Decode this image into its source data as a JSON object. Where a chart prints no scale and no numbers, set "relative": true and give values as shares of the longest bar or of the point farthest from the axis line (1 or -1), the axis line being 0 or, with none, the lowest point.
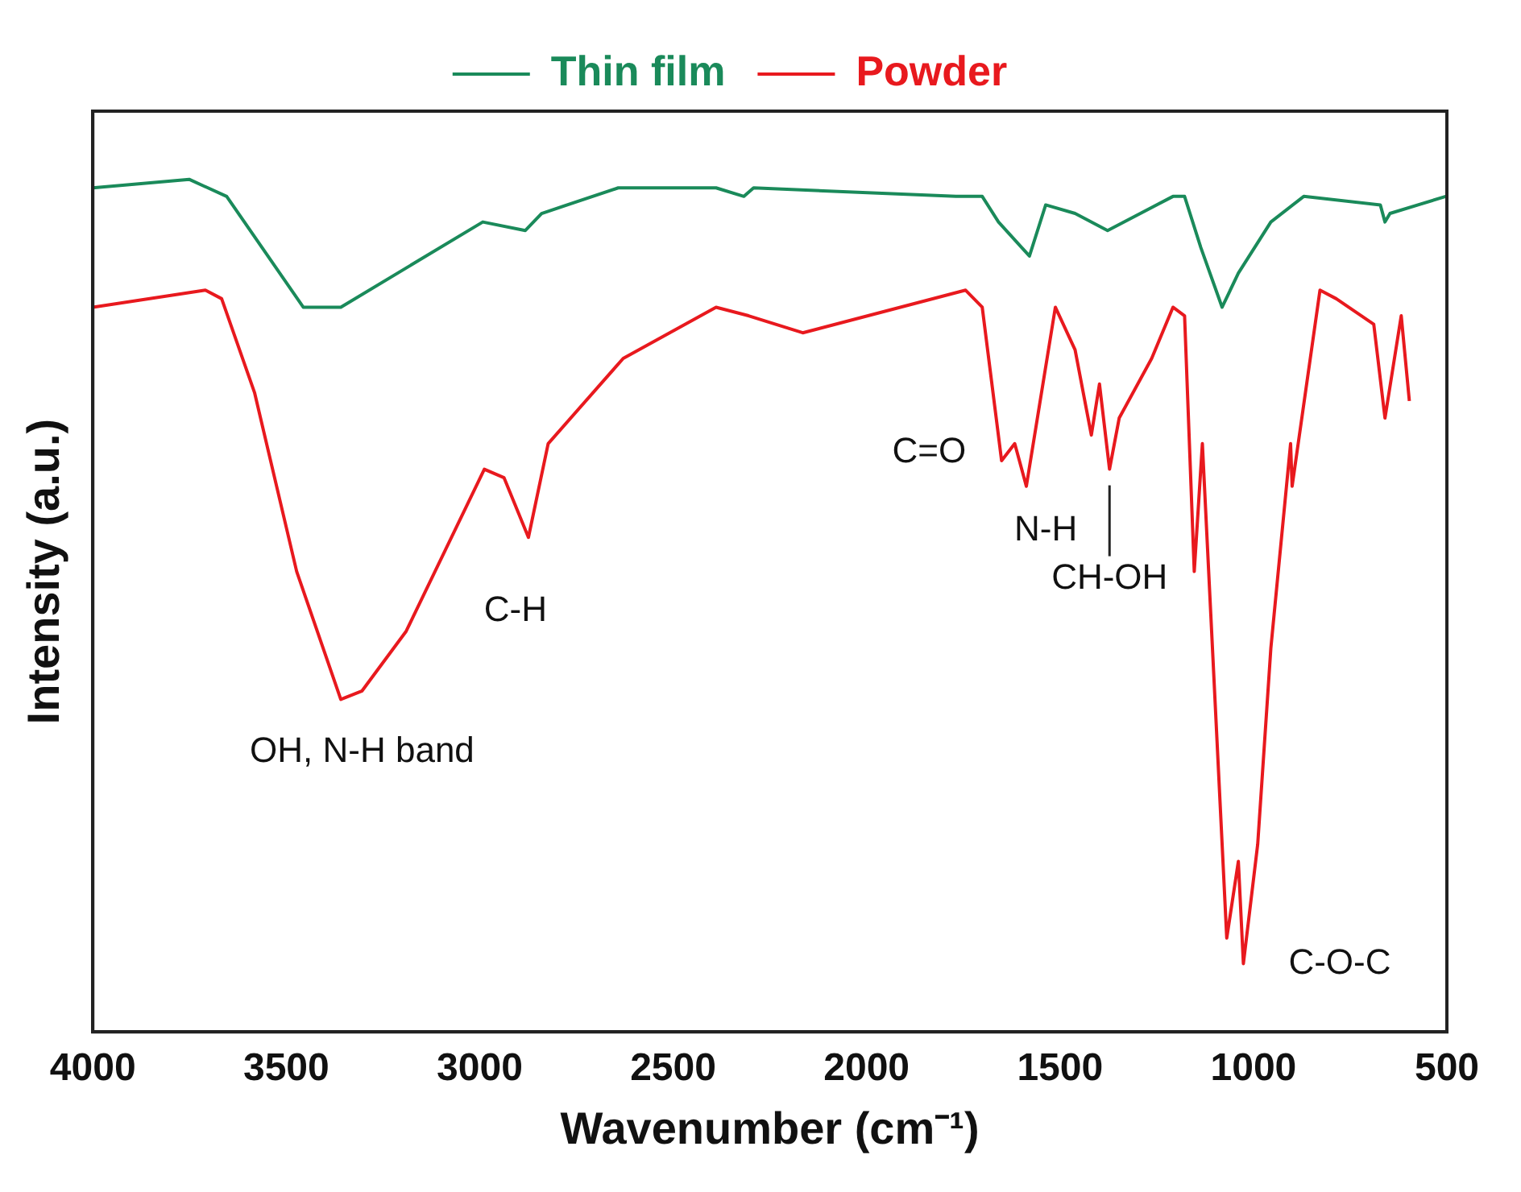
{
  "chart_data": {
    "type": "line",
    "relative": true,
    "xlabel": "Wavenumber (cm⁻¹)",
    "ylabel": "Intensity (a.u.)",
    "xlim": [
      4000,
      500
    ],
    "xticks": [
      4000,
      3500,
      3000,
      2500,
      2000,
      1500,
      1000,
      500
    ],
    "grid": false,
    "legend": "top",
    "marker": "none",
    "line_style": "solid",
    "series": [
      {
        "name": "Thin film",
        "color": "#1a8a5a",
        "x": [
          4000,
          3751,
          3654,
          3456,
          3359,
          2992,
          2882,
          2840,
          2642,
          2389,
          2317,
          2292,
          1769,
          1701,
          1659,
          1579,
          1537,
          1461,
          1377,
          1208,
          1178,
          1136,
          1081,
          1039,
          955,
          870,
          672,
          660,
          647,
          503
        ],
        "values": [
          0.99,
          1.0,
          0.98,
          0.85,
          0.85,
          0.95,
          0.94,
          0.96,
          0.99,
          0.99,
          0.98,
          0.99,
          0.98,
          0.98,
          0.95,
          0.91,
          0.97,
          0.96,
          0.94,
          0.98,
          0.98,
          0.92,
          0.85,
          0.89,
          0.95,
          0.98,
          0.97,
          0.95,
          0.96,
          0.98
        ]
      },
      {
        "name": "Powder",
        "color": "#e8191e",
        "x": [
          4000,
          3709,
          3667,
          3582,
          3473,
          3359,
          3304,
          3190,
          2988,
          2937,
          2874,
          2823,
          2629,
          2389,
          2305,
          2165,
          1744,
          1701,
          1651,
          1617,
          1587,
          1512,
          1461,
          1419,
          1398,
          1372,
          1347,
          1263,
          1208,
          1178,
          1153,
          1132,
          1069,
          1039,
          1026,
          989,
          955,
          904,
          900,
          828,
          786,
          689,
          660,
          618,
          597
        ],
        "values": [
          0.85,
          0.87,
          0.86,
          0.75,
          0.54,
          0.39,
          0.4,
          0.47,
          0.66,
          0.65,
          0.58,
          0.69,
          0.79,
          0.85,
          0.84,
          0.82,
          0.87,
          0.85,
          0.67,
          0.69,
          0.64,
          0.85,
          0.8,
          0.7,
          0.76,
          0.66,
          0.72,
          0.79,
          0.85,
          0.84,
          0.54,
          0.69,
          0.11,
          0.2,
          0.08,
          0.22,
          0.45,
          0.69,
          0.64,
          0.87,
          0.86,
          0.83,
          0.72,
          0.84,
          0.74
        ]
      }
    ],
    "annotations": [
      {
        "text": "OH, N-H band",
        "x": 3304,
        "y": 0.4
      },
      {
        "text": "C-H",
        "x": 2874,
        "y": 0.58
      },
      {
        "text": "C=O",
        "x": 1651,
        "y": 0.67
      },
      {
        "text": "N-H",
        "x": 1372,
        "y": 0.66
      },
      {
        "text": "CH-OH",
        "x": 1372,
        "y": 0.66
      },
      {
        "text": "C-O-C",
        "x": 1026,
        "y": 0.08
      }
    ]
  }
}
